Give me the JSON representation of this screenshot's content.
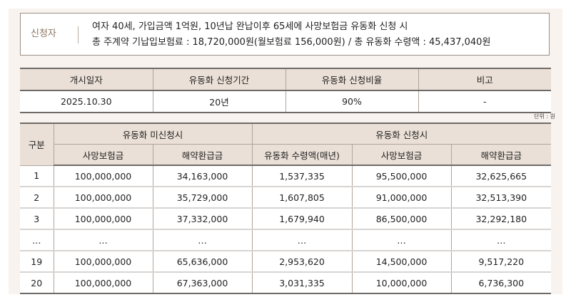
{
  "applicant": {
    "label": "신청자",
    "line1": "여자 40세, 가입금액 1억원, 10년납 완납이후 65세에 사망보험금 유동화 신청 시",
    "line2": "총 주계약 기납입보험료 : 18,720,000원(월보험료 156,000원) / 총 유동화 수령액 : 45,437,040원"
  },
  "summary_table": {
    "headers": [
      "개시일자",
      "유동화 신청기간",
      "유동화 신청비율",
      "비고"
    ],
    "row": [
      "2025.10.30",
      "20년",
      "90%",
      "-"
    ]
  },
  "unit_note": "단위 : 원",
  "detail_table": {
    "col_group": "구분",
    "group_no_apply": "유동화 미신청시",
    "group_apply": "유동화 신청시",
    "subheaders": [
      "사망보험금",
      "해약환급금",
      "유동화 수령액(매년)",
      "사망보험금",
      "해약환급금"
    ],
    "rows": [
      [
        "1",
        "100,000,000",
        "34,163,000",
        "1,537,335",
        "95,500,000",
        "32,625,665"
      ],
      [
        "2",
        "100,000,000",
        "35,729,000",
        "1,607,805",
        "91,000,000",
        "32,513,390"
      ],
      [
        "3",
        "100,000,000",
        "37,332,000",
        "1,679,940",
        "86,500,000",
        "32,292,180"
      ],
      [
        "…",
        "…",
        "…",
        "…",
        "…",
        "…"
      ],
      [
        "19",
        "100,000,000",
        "65,636,000",
        "2,953,620",
        "14,500,000",
        "9,517,220"
      ],
      [
        "20",
        "100,000,000",
        "67,363,000",
        "3,031,335",
        "10,000,000",
        "6,736,300"
      ]
    ]
  }
}
